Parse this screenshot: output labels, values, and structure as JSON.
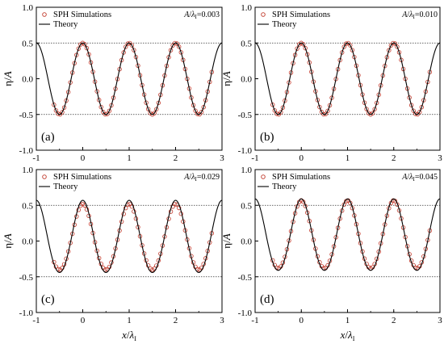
{
  "chart_data": [
    {
      "type": "scatter",
      "panel_label": "(a)",
      "ratio": {
        "prefix": "A",
        "sep": "/",
        "symbol": "λ",
        "subscript": "I",
        "value": "=0.003"
      },
      "xlabel": {
        "main": "x",
        "sep": "/",
        "symbol": "λ",
        "subscript": "I"
      },
      "ylabel": {
        "symbol": "η",
        "sep": "/",
        "main": "A"
      },
      "xlim": [
        -1,
        3
      ],
      "ylim": [
        -1.0,
        1.0
      ],
      "xticks": [
        "-1",
        "0",
        "1",
        "2",
        "3"
      ],
      "yticks": [
        "-1.0",
        "-0.5",
        "0.0",
        "0.5",
        "1.0"
      ],
      "reference_lines": [
        0.5,
        -0.5
      ],
      "legend": {
        "position": "top-left",
        "entries": [
          "SPH Simulations",
          "Theory"
        ]
      },
      "series": [
        {
          "name": "SPH Simulations",
          "marker": "open-circle",
          "color": "#c0392b",
          "x_range": [
            -0.62,
            2.78
          ],
          "amplitude": 0.5,
          "period": 1.0
        },
        {
          "name": "Theory",
          "marker": "line",
          "color": "#000000",
          "x_range": [
            -1.0,
            3.0
          ],
          "amplitude": 0.5,
          "period": 1.0
        }
      ]
    },
    {
      "type": "scatter",
      "panel_label": "(b)",
      "ratio": {
        "prefix": "A",
        "sep": "/",
        "symbol": "λ",
        "subscript": "I",
        "value": "=0.010"
      },
      "xlabel": {
        "main": "x",
        "sep": "/",
        "symbol": "λ",
        "subscript": "I"
      },
      "ylabel": {
        "symbol": "η",
        "sep": "/",
        "main": "A"
      },
      "xlim": [
        -1,
        3
      ],
      "ylim": [
        -1.0,
        1.0
      ],
      "xticks": [
        "-1",
        "0",
        "1",
        "2",
        "3"
      ],
      "yticks": [
        "-1.0",
        "-0.5",
        "0.0",
        "0.5",
        "1.0"
      ],
      "reference_lines": [
        0.5,
        -0.5
      ],
      "legend": {
        "position": "top-left",
        "entries": [
          "SPH Simulations",
          "Theory"
        ]
      },
      "series": [
        {
          "name": "SPH Simulations",
          "marker": "open-circle",
          "color": "#c0392b",
          "x_range": [
            -0.62,
            2.78
          ],
          "amplitude": 0.5,
          "period": 1.0
        },
        {
          "name": "Theory",
          "marker": "line",
          "color": "#000000",
          "x_range": [
            -1.0,
            3.0
          ],
          "amplitude": 0.5,
          "period": 1.0
        }
      ]
    },
    {
      "type": "scatter",
      "panel_label": "(c)",
      "ratio": {
        "prefix": "A",
        "sep": "/",
        "symbol": "λ",
        "subscript": "I",
        "value": "=0.029"
      },
      "xlabel": {
        "main": "x",
        "sep": "/",
        "symbol": "λ",
        "subscript": "I"
      },
      "ylabel": {
        "symbol": "η",
        "sep": "/",
        "main": "A"
      },
      "xlim": [
        -1,
        3
      ],
      "ylim": [
        -1.0,
        1.0
      ],
      "xticks": [
        "-1",
        "0",
        "1",
        "2",
        "3"
      ],
      "yticks": [
        "-1.0",
        "-0.5",
        "0.0",
        "0.5",
        "1.0"
      ],
      "reference_lines": [
        0.5,
        -0.5
      ],
      "legend": {
        "position": "top-left",
        "entries": [
          "SPH Simulations",
          "Theory"
        ]
      },
      "series": [
        {
          "name": "SPH Simulations",
          "marker": "open-circle",
          "color": "#c0392b",
          "x_range": [
            -0.62,
            2.78
          ],
          "crest": 0.5,
          "trough": -0.42,
          "period": 1.0
        },
        {
          "name": "Theory",
          "marker": "line",
          "color": "#000000",
          "x_range": [
            -1.0,
            3.0
          ],
          "crest": 0.55,
          "trough": -0.46,
          "period": 1.0
        }
      ]
    },
    {
      "type": "scatter",
      "panel_label": "(d)",
      "ratio": {
        "prefix": "A",
        "sep": "/",
        "symbol": "λ",
        "subscript": "I",
        "value": "=0.045"
      },
      "xlabel": {
        "main": "x",
        "sep": "/",
        "symbol": "λ",
        "subscript": "I"
      },
      "ylabel": {
        "symbol": "η",
        "sep": "/",
        "main": "A"
      },
      "xlim": [
        -1,
        3
      ],
      "ylim": [
        -1.0,
        1.0
      ],
      "xticks": [
        "-1",
        "0",
        "1",
        "2",
        "3"
      ],
      "yticks": [
        "-1.0",
        "-0.5",
        "0.0",
        "0.5",
        "1.0"
      ],
      "reference_lines": [
        0.5,
        -0.5
      ],
      "legend": {
        "position": "top-left",
        "entries": [
          "SPH Simulations",
          "Theory"
        ]
      },
      "series": [
        {
          "name": "SPH Simulations",
          "marker": "open-circle",
          "color": "#c0392b",
          "x_range": [
            -0.62,
            2.78
          ],
          "crest": 0.55,
          "trough": -0.4,
          "period": 1.0
        },
        {
          "name": "Theory",
          "marker": "line",
          "color": "#000000",
          "x_range": [
            -1.0,
            3.0
          ],
          "crest": 0.57,
          "trough": -0.43,
          "period": 1.0
        }
      ]
    }
  ]
}
